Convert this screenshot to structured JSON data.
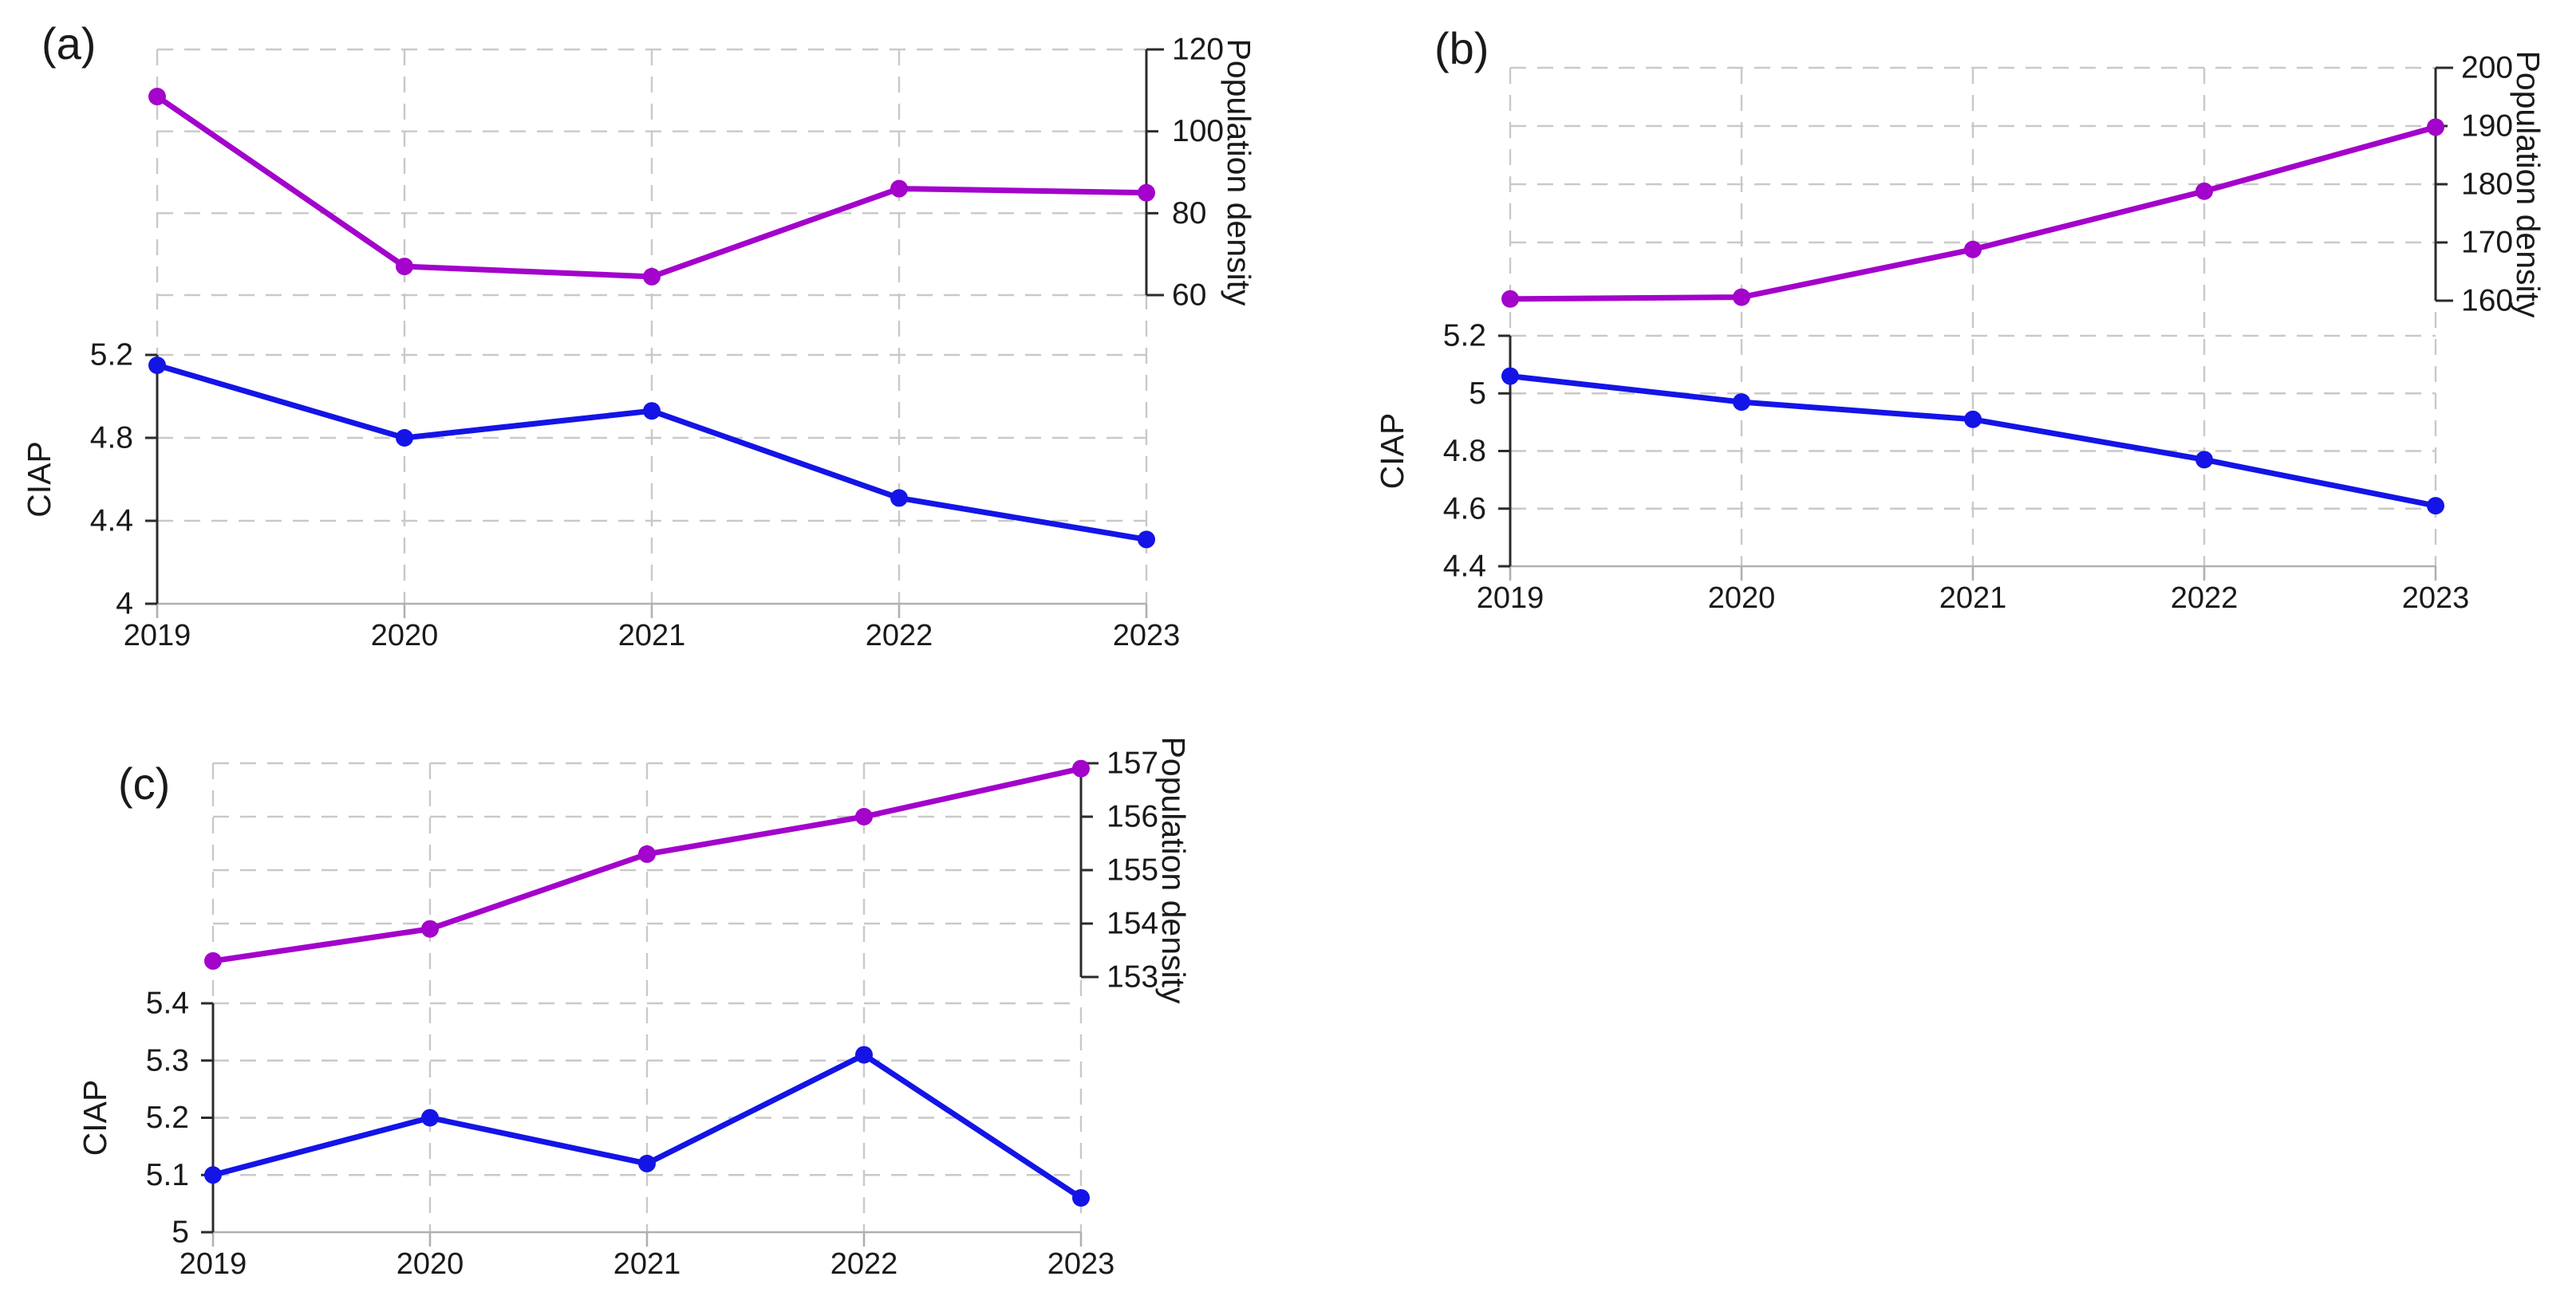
{
  "figure": {
    "background": "#ffffff",
    "grid_color": "#c9c9c9",
    "axis_color": "#2b2b2b",
    "xaxis_color": "#b0b0b0",
    "text_color": "#1a1a1a"
  },
  "chart_data": [
    {
      "id": "a",
      "type": "line",
      "panel_label": "(a)",
      "categories": [
        "2019",
        "2020",
        "2021",
        "2022",
        "2023"
      ],
      "left_axis": {
        "label": "CIAP",
        "ticks": [
          "5.2",
          "4.8",
          "4.4",
          "4"
        ],
        "tick_values": [
          5.2,
          4.8,
          4.4,
          4
        ],
        "min": 4,
        "max": 5.2,
        "grid": true
      },
      "right_axis": {
        "label": "Population density",
        "ticks": [
          "120",
          "100",
          "80",
          "60"
        ],
        "tick_values": [
          120,
          100,
          80,
          60
        ],
        "min": 60,
        "max": 120,
        "grid": true,
        "grid_lowest": true
      },
      "series": [
        {
          "name": "Population density",
          "axis": "right",
          "color": "#a303cb",
          "values": [
            108.5,
            67,
            64.5,
            86,
            85
          ]
        },
        {
          "name": "CIAP",
          "axis": "left",
          "color": "#1414e6",
          "values": [
            5.15,
            4.8,
            4.93,
            4.51,
            4.31
          ]
        }
      ]
    },
    {
      "id": "b",
      "type": "line",
      "panel_label": "(b)",
      "categories": [
        "2019",
        "2020",
        "2021",
        "2022",
        "2023"
      ],
      "left_axis": {
        "label": "CIAP",
        "ticks": [
          "5.2",
          "5",
          "4.8",
          "4.6",
          "4.4"
        ],
        "tick_values": [
          5.2,
          5,
          4.8,
          4.6,
          4.4
        ],
        "min": 4.4,
        "max": 5.2,
        "grid": true
      },
      "right_axis": {
        "label": "Population density",
        "ticks": [
          "200",
          "190",
          "180",
          "170",
          "160"
        ],
        "tick_values": [
          200,
          190,
          180,
          170,
          160
        ],
        "min": 160,
        "max": 200,
        "grid": true,
        "grid_lowest": false
      },
      "series": [
        {
          "name": "Population density",
          "axis": "right",
          "color": "#a303cb",
          "values": [
            160.3,
            160.6,
            168.8,
            178.8,
            189.8
          ]
        },
        {
          "name": "CIAP",
          "axis": "left",
          "color": "#1414e6",
          "values": [
            5.06,
            4.97,
            4.91,
            4.77,
            4.61
          ]
        }
      ]
    },
    {
      "id": "c",
      "type": "line",
      "panel_label": "(c)",
      "categories": [
        "2019",
        "2020",
        "2021",
        "2022",
        "2023"
      ],
      "left_axis": {
        "label": "CIAP",
        "ticks": [
          "5.4",
          "5.3",
          "5.2",
          "5.1",
          "5"
        ],
        "tick_values": [
          5.4,
          5.3,
          5.2,
          5.1,
          5
        ],
        "min": 5,
        "max": 5.4,
        "grid": true
      },
      "right_axis": {
        "label": "Population density",
        "ticks": [
          "157",
          "156",
          "155",
          "154",
          "153"
        ],
        "tick_values": [
          157,
          156,
          155,
          154,
          153
        ],
        "min": 153,
        "max": 157,
        "grid": true,
        "grid_lowest": false
      },
      "series": [
        {
          "name": "Population density",
          "axis": "right",
          "color": "#a303cb",
          "values": [
            153.3,
            153.9,
            155.3,
            156,
            156.9
          ]
        },
        {
          "name": "CIAP",
          "axis": "left",
          "color": "#1414e6",
          "values": [
            5.1,
            5.2,
            5.12,
            5.31,
            5.06
          ]
        }
      ]
    }
  ]
}
